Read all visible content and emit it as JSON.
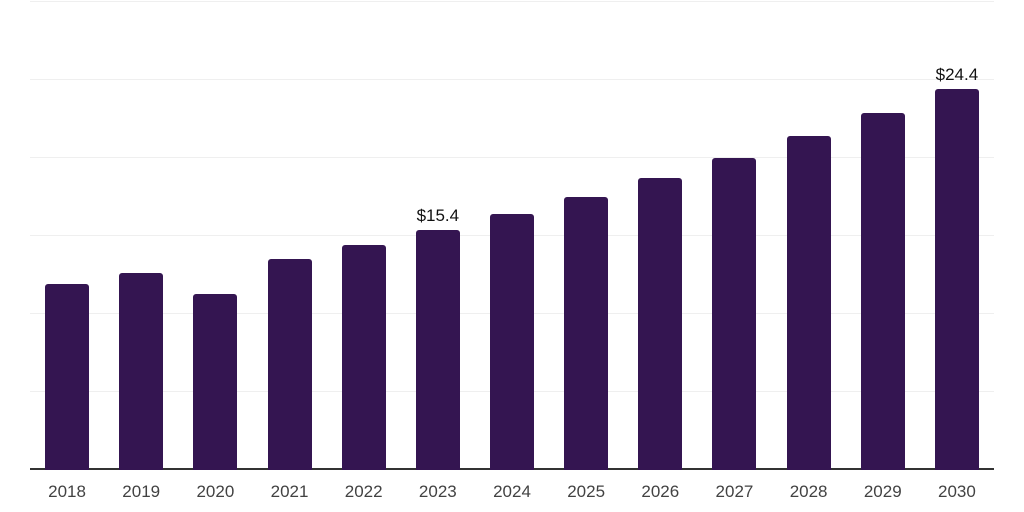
{
  "chart_data": {
    "type": "bar",
    "categories": [
      "2018",
      "2019",
      "2020",
      "2021",
      "2022",
      "2023",
      "2024",
      "2025",
      "2026",
      "2027",
      "2028",
      "2029",
      "2030"
    ],
    "values": [
      11.9,
      12.6,
      11.3,
      13.5,
      14.4,
      15.4,
      16.4,
      17.5,
      18.7,
      20.0,
      21.4,
      22.9,
      24.4
    ],
    "data_labels": [
      null,
      null,
      null,
      null,
      null,
      "$15.4",
      null,
      null,
      null,
      null,
      null,
      null,
      "$24.4"
    ],
    "ylim": [
      0,
      30
    ],
    "gridline_values": [
      5,
      10,
      15,
      20,
      25,
      30
    ],
    "grid": true,
    "legend_position": "none",
    "value_prefix": "$",
    "colors": {
      "bar": "#341551",
      "grid": "#efefef",
      "axis": "#333333",
      "tick_label": "#424242",
      "value_label": "#111111",
      "background": "#ffffff"
    }
  }
}
